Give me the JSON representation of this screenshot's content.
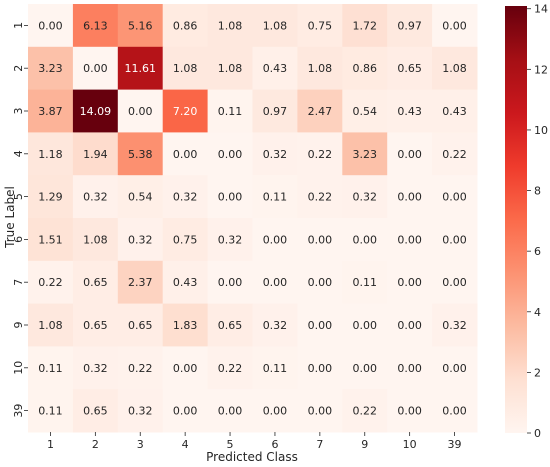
{
  "chart_data": {
    "type": "heatmap",
    "xlabel": "Predicted Class",
    "ylabel": "True Label",
    "x_categories": [
      "1",
      "2",
      "3",
      "4",
      "5",
      "6",
      "7",
      "9",
      "10",
      "39"
    ],
    "y_categories": [
      "1",
      "2",
      "3",
      "4",
      "5",
      "6",
      "7",
      "9",
      "10",
      "39"
    ],
    "values": [
      [
        0.0,
        6.13,
        5.16,
        0.86,
        1.08,
        1.08,
        0.75,
        1.72,
        0.97,
        0.0
      ],
      [
        3.23,
        0.0,
        11.61,
        1.08,
        1.08,
        0.43,
        1.08,
        0.86,
        0.65,
        1.08
      ],
      [
        3.87,
        14.09,
        0.0,
        7.2,
        0.11,
        0.97,
        2.47,
        0.54,
        0.43,
        0.43
      ],
      [
        1.18,
        1.94,
        5.38,
        0.0,
        0.0,
        0.32,
        0.22,
        3.23,
        0.0,
        0.22
      ],
      [
        1.29,
        0.32,
        0.54,
        0.32,
        0.0,
        0.11,
        0.22,
        0.32,
        0.0,
        0.0
      ],
      [
        1.51,
        1.08,
        0.32,
        0.75,
        0.32,
        0.0,
        0.0,
        0.0,
        0.0,
        0.0
      ],
      [
        0.22,
        0.65,
        2.37,
        0.43,
        0.0,
        0.0,
        0.0,
        0.11,
        0.0,
        0.0
      ],
      [
        1.08,
        0.65,
        0.65,
        1.83,
        0.65,
        0.32,
        0.0,
        0.0,
        0.0,
        0.32
      ],
      [
        0.11,
        0.32,
        0.22,
        0.0,
        0.22,
        0.11,
        0.0,
        0.0,
        0.0,
        0.0
      ],
      [
        0.11,
        0.65,
        0.32,
        0.0,
        0.0,
        0.0,
        0.0,
        0.22,
        0.0,
        0.0
      ]
    ],
    "value_format": "2 decimals",
    "colormap": "Reds",
    "colormap_stops": [
      "#fff5f0",
      "#fee0d2",
      "#fcbba1",
      "#fc9272",
      "#fb6a4a",
      "#ef3b2c",
      "#cb181d",
      "#a50f15",
      "#67000d"
    ],
    "colorbar": {
      "range": [
        0,
        14.09
      ],
      "ticks": [
        0,
        2,
        4,
        6,
        8,
        10,
        12,
        14
      ]
    },
    "light_text_color": "#ffffff",
    "dark_text_color": "#262626"
  }
}
